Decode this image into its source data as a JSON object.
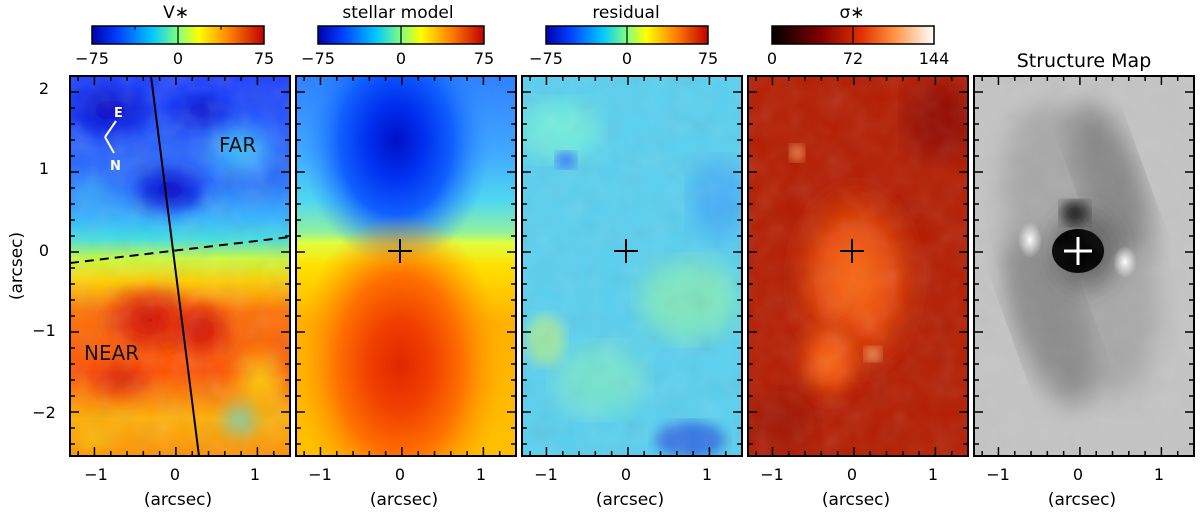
{
  "figure": {
    "panels": [
      {
        "id": "vstar",
        "title": "V∗",
        "colorbar": {
          "scheme": "jet",
          "ticks": [
            "−75",
            "0",
            "75"
          ]
        },
        "annotations": {
          "far": "FAR",
          "near": "NEAR",
          "compass_e": "E",
          "compass_n": "N"
        },
        "ylabel": "(arcsec)",
        "xlabel": "(arcsec)"
      },
      {
        "id": "stellar-model",
        "title": "stellar  model",
        "colorbar": {
          "scheme": "jet",
          "ticks": [
            "−75",
            "0",
            "75"
          ]
        },
        "xlabel": "(arcsec)"
      },
      {
        "id": "residual",
        "title": "residual",
        "colorbar": {
          "scheme": "jet",
          "ticks": [
            "−75",
            "0",
            "75"
          ]
        },
        "xlabel": "(arcsec)"
      },
      {
        "id": "sigma",
        "title": "σ∗",
        "colorbar": {
          "scheme": "hot",
          "ticks": [
            "0",
            "72",
            "144"
          ]
        },
        "xlabel": "(arcsec)"
      },
      {
        "id": "structure-map",
        "title": "Structure Map",
        "xlabel": "(arcsec)"
      }
    ],
    "x_ticks": [
      "−1",
      "0",
      "1"
    ],
    "y_ticks": [
      "2",
      "1",
      "0",
      "−1",
      "−2"
    ],
    "x_range": [
      -1.3,
      1.4
    ],
    "y_range": [
      -2.55,
      2.2
    ],
    "colors": {
      "frame": "#000000",
      "background": "#ffffff"
    }
  }
}
